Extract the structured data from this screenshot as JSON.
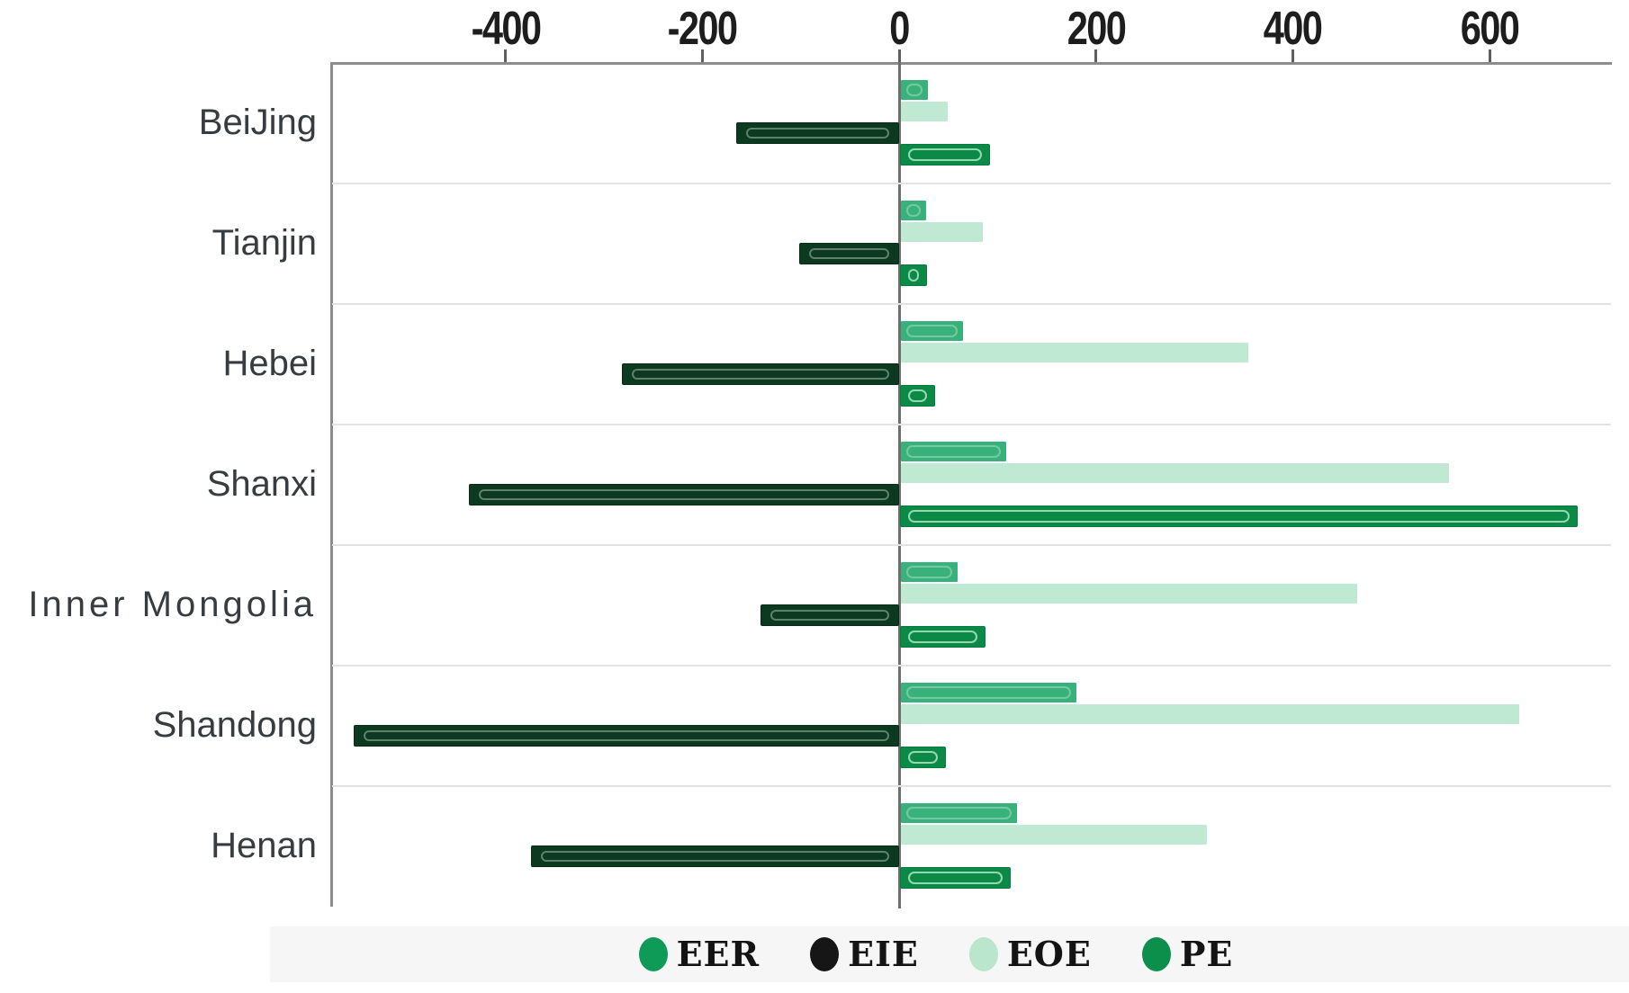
{
  "figure": {
    "background": "#ffffff",
    "axis_color": "#8c8c8c",
    "zero_line_color": "#6e6e6e",
    "separator_color": "#e3e3e3"
  },
  "chart_data": {
    "type": "bar",
    "orientation": "horizontal",
    "title": "",
    "xlabel": "",
    "ylabel": "",
    "grid": "light horizontal separators between category groups; x axis on top",
    "xlim": [
      -578,
      724
    ],
    "x_ticks": [
      -400,
      -200,
      0,
      200,
      400,
      600
    ],
    "x_tick_labels": [
      "-400",
      "-200",
      "0",
      "200",
      "400",
      "600"
    ],
    "categories": [
      "BeiJing",
      "Tianjin",
      "Hebei",
      "Shanxi",
      "Inner Mongolia",
      "Shandong",
      "Henan"
    ],
    "row_order_top_to_bottom": [
      "EER",
      "EOE",
      "EIE",
      "PE"
    ],
    "series": [
      {
        "name": "EER",
        "color": "#38b27a",
        "values": [
          27,
          26,
          63,
          107,
          58,
          178,
          118
        ]
      },
      {
        "name": "EOE",
        "color": "#c0e9d4",
        "values": [
          48,
          83,
          353,
          557,
          464,
          628,
          311
        ]
      },
      {
        "name": "EIE",
        "color": "#0b3a21",
        "values": [
          -164,
          -100,
          -280,
          -435,
          -139,
          -552,
          -372
        ]
      },
      {
        "name": "PE",
        "color": "#0b8a47",
        "values": [
          90,
          26,
          34,
          687,
          85,
          45,
          111
        ]
      }
    ],
    "legend": {
      "position": "bottom-center",
      "items": [
        {
          "label": "EER",
          "color": "#0e9b57"
        },
        {
          "label": "EIE",
          "color": "#161616"
        },
        {
          "label": "EOE",
          "color": "#b9e6cc"
        },
        {
          "label": "PE",
          "color": "#0c8f4b"
        }
      ]
    }
  }
}
